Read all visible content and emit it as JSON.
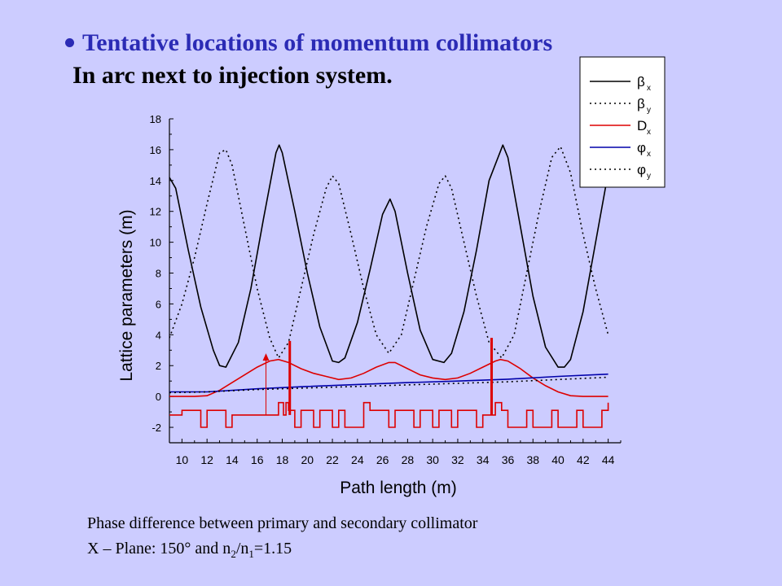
{
  "slide": {
    "title": "Tentative locations of momentum collimators",
    "subtitle": "In arc next to injection system.",
    "note_line1": "Phase difference between primary and secondary collimator",
    "note_line2_prefix": "X – Plane: 150° and n",
    "note_line2_sub1": "2",
    "note_line2_mid": "/n",
    "note_line2_sub2": "1",
    "note_line2_suffix": "=1.15",
    "colors": {
      "background": "#ccccff",
      "title": "#2b2bb5",
      "beta": "#000000",
      "dispersion": "#dd0000",
      "phase": "#0000aa"
    }
  },
  "chart_data": {
    "type": "line",
    "xlabel": "Path length (m)",
    "ylabel": "Lattice parameters (m)",
    "xlim": [
      9,
      45
    ],
    "ylim": [
      -3,
      18
    ],
    "xticks": [
      10,
      12,
      14,
      16,
      18,
      20,
      22,
      24,
      26,
      28,
      30,
      32,
      34,
      36,
      38,
      40,
      42,
      44
    ],
    "yticks": [
      -2,
      0,
      2,
      4,
      6,
      8,
      10,
      12,
      14,
      16,
      18
    ],
    "legend_position": "top-right",
    "legend": [
      {
        "label": "β",
        "sub": "x",
        "style": "solid",
        "color": "#000000"
      },
      {
        "label": "β",
        "sub": "y",
        "style": "dotted",
        "color": "#000000"
      },
      {
        "label": "D",
        "sub": "x",
        "style": "solid",
        "color": "#dd0000"
      },
      {
        "label": "φ",
        "sub": "x",
        "style": "solid",
        "color": "#0000aa"
      },
      {
        "label": "φ",
        "sub": "y",
        "style": "dotted",
        "color": "#000000"
      }
    ],
    "series": [
      {
        "name": "βx",
        "style": "solid",
        "color": "#000000",
        "x": [
          9.0,
          9.5,
          10.5,
          11.5,
          12.5,
          13.0,
          13.5,
          14.5,
          15.5,
          16.5,
          17.5,
          17.75,
          18.0,
          19.0,
          20.0,
          21.0,
          22.0,
          22.5,
          23.0,
          24.0,
          25.0,
          26.0,
          26.6,
          27.0,
          28.0,
          29.0,
          30.0,
          30.9,
          31.5,
          32.5,
          33.5,
          34.5,
          35.6,
          36.0,
          37.0,
          38.0,
          39.0,
          40.0,
          40.5,
          41.0,
          42.0,
          43.0,
          44.0
        ],
        "y": [
          14.2,
          13.5,
          9.5,
          5.8,
          3.0,
          2.0,
          1.9,
          3.5,
          7.0,
          11.5,
          15.8,
          16.3,
          15.8,
          12.0,
          8.0,
          4.5,
          2.3,
          2.2,
          2.5,
          4.8,
          8.2,
          11.8,
          12.8,
          12.0,
          8.0,
          4.3,
          2.4,
          2.2,
          2.8,
          5.5,
          9.5,
          14.0,
          16.3,
          15.5,
          11.0,
          6.5,
          3.2,
          1.9,
          1.9,
          2.4,
          5.5,
          10.0,
          14.5
        ]
      },
      {
        "name": "βy",
        "style": "dotted",
        "color": "#000000",
        "x": [
          9.0,
          10.0,
          11.0,
          12.0,
          13.0,
          13.5,
          14.0,
          15.0,
          16.0,
          17.0,
          17.7,
          18.5,
          19.5,
          20.5,
          21.5,
          22.0,
          22.5,
          23.5,
          24.5,
          25.5,
          26.5,
          27.5,
          28.5,
          29.5,
          30.5,
          31.0,
          31.5,
          32.5,
          33.5,
          34.5,
          35.5,
          36.5,
          37.5,
          38.5,
          39.5,
          40.2,
          41.0,
          42.0,
          43.0,
          44.0
        ],
        "y": [
          3.8,
          6.0,
          9.0,
          12.5,
          15.8,
          16.0,
          15.0,
          11.0,
          7.0,
          3.8,
          2.5,
          3.5,
          7.0,
          10.5,
          13.5,
          14.3,
          13.8,
          10.5,
          7.0,
          4.0,
          2.8,
          4.0,
          7.5,
          11.0,
          13.8,
          14.3,
          13.5,
          10.0,
          6.5,
          3.5,
          2.5,
          4.0,
          8.0,
          12.0,
          15.5,
          16.2,
          14.5,
          10.5,
          7.0,
          4.0
        ]
      },
      {
        "name": "Dx",
        "style": "solid",
        "color": "#dd0000",
        "x": [
          9.0,
          10.0,
          11.0,
          12.0,
          13.0,
          14.0,
          15.0,
          16.0,
          17.0,
          17.7,
          18.5,
          19.5,
          20.5,
          21.5,
          22.5,
          23.5,
          24.5,
          25.5,
          26.5,
          27.0,
          28.0,
          29.0,
          30.0,
          31.0,
          32.0,
          33.0,
          34.0,
          35.0,
          35.4,
          36.0,
          37.0,
          38.0,
          39.0,
          40.0,
          41.0,
          42.0,
          43.0,
          44.0
        ],
        "y": [
          0.0,
          0.0,
          0.0,
          0.05,
          0.4,
          0.9,
          1.4,
          1.9,
          2.3,
          2.4,
          2.2,
          1.8,
          1.5,
          1.3,
          1.1,
          1.2,
          1.5,
          1.9,
          2.2,
          2.2,
          1.8,
          1.4,
          1.2,
          1.1,
          1.2,
          1.5,
          1.9,
          2.3,
          2.4,
          2.3,
          1.8,
          1.2,
          0.7,
          0.3,
          0.05,
          0.0,
          0.0,
          0.0
        ]
      },
      {
        "name": "φx",
        "style": "solid",
        "color": "#0000aa",
        "x": [
          9,
          12,
          16,
          20,
          24,
          28,
          32,
          36,
          40,
          44
        ],
        "y": [
          0.3,
          0.3,
          0.5,
          0.65,
          0.78,
          0.9,
          1.0,
          1.12,
          1.3,
          1.45
        ]
      },
      {
        "name": "φy",
        "style": "dotted",
        "color": "#000000",
        "x": [
          9,
          12,
          16,
          20,
          24,
          28,
          32,
          36,
          40,
          44
        ],
        "y": [
          0.25,
          0.3,
          0.45,
          0.55,
          0.65,
          0.75,
          0.85,
          0.95,
          1.1,
          1.25
        ]
      },
      {
        "name": "elements",
        "style": "solid",
        "color": "#dd0000",
        "x": [
          9.0,
          10.0,
          10.0,
          11.5,
          11.5,
          12.0,
          12.0,
          13.5,
          13.5,
          14.0,
          14.0,
          17.7,
          17.7,
          18.1,
          18.1,
          18.3,
          18.3,
          18.5,
          18.5,
          19.0,
          19.0,
          19.5,
          19.5,
          20.5,
          20.5,
          21.0,
          21.0,
          22.0,
          22.0,
          22.5,
          22.5,
          23.0,
          23.0,
          24.5,
          24.5,
          25.0,
          25.0,
          26.5,
          26.5,
          27.0,
          27.0,
          28.5,
          28.5,
          29.0,
          29.0,
          30.0,
          30.0,
          30.5,
          30.5,
          31.5,
          31.5,
          32.0,
          32.0,
          33.5,
          33.5,
          34.0,
          34.0,
          35.0,
          35.0,
          35.5,
          35.5,
          36.0,
          36.0,
          37.5,
          37.5,
          38.0,
          38.0,
          39.5,
          39.5,
          40.0,
          40.0,
          41.5,
          41.5,
          42.0,
          42.0,
          43.5,
          43.5,
          44.0,
          44.0
        ],
        "y": [
          -1.2,
          -1.2,
          -0.9,
          -0.9,
          -2.0,
          -2.0,
          -0.9,
          -0.9,
          -2.0,
          -2.0,
          -1.2,
          -1.2,
          -0.4,
          -0.4,
          -1.2,
          -1.2,
          -0.4,
          -0.4,
          -0.9,
          -0.9,
          -2.0,
          -2.0,
          -0.9,
          -0.9,
          -2.0,
          -2.0,
          -0.9,
          -0.9,
          -2.0,
          -2.0,
          -0.9,
          -0.9,
          -2.0,
          -2.0,
          -0.4,
          -0.4,
          -0.9,
          -0.9,
          -2.0,
          -2.0,
          -0.9,
          -0.9,
          -2.0,
          -2.0,
          -0.9,
          -0.9,
          -2.0,
          -2.0,
          -0.9,
          -0.9,
          -2.0,
          -2.0,
          -0.9,
          -0.9,
          -2.0,
          -2.0,
          -1.2,
          -1.2,
          -0.4,
          -0.4,
          -0.9,
          -0.9,
          -2.0,
          -2.0,
          -0.9,
          -0.9,
          -2.0,
          -2.0,
          -0.9,
          -0.9,
          -2.0,
          -2.0,
          -0.9,
          -0.9,
          -2.0,
          -2.0,
          -0.9,
          -0.9,
          -0.4
        ]
      }
    ],
    "collimators": [
      {
        "name": "primary",
        "x": 18.6,
        "y_bottom": -1.2,
        "y_top": 3.6
      },
      {
        "name": "secondary",
        "x": 34.7,
        "y_bottom": -1.2,
        "y_top": 3.8
      }
    ],
    "arrow": {
      "x": 16.7,
      "y_bottom": -1.2,
      "y_top": 2.8
    }
  }
}
